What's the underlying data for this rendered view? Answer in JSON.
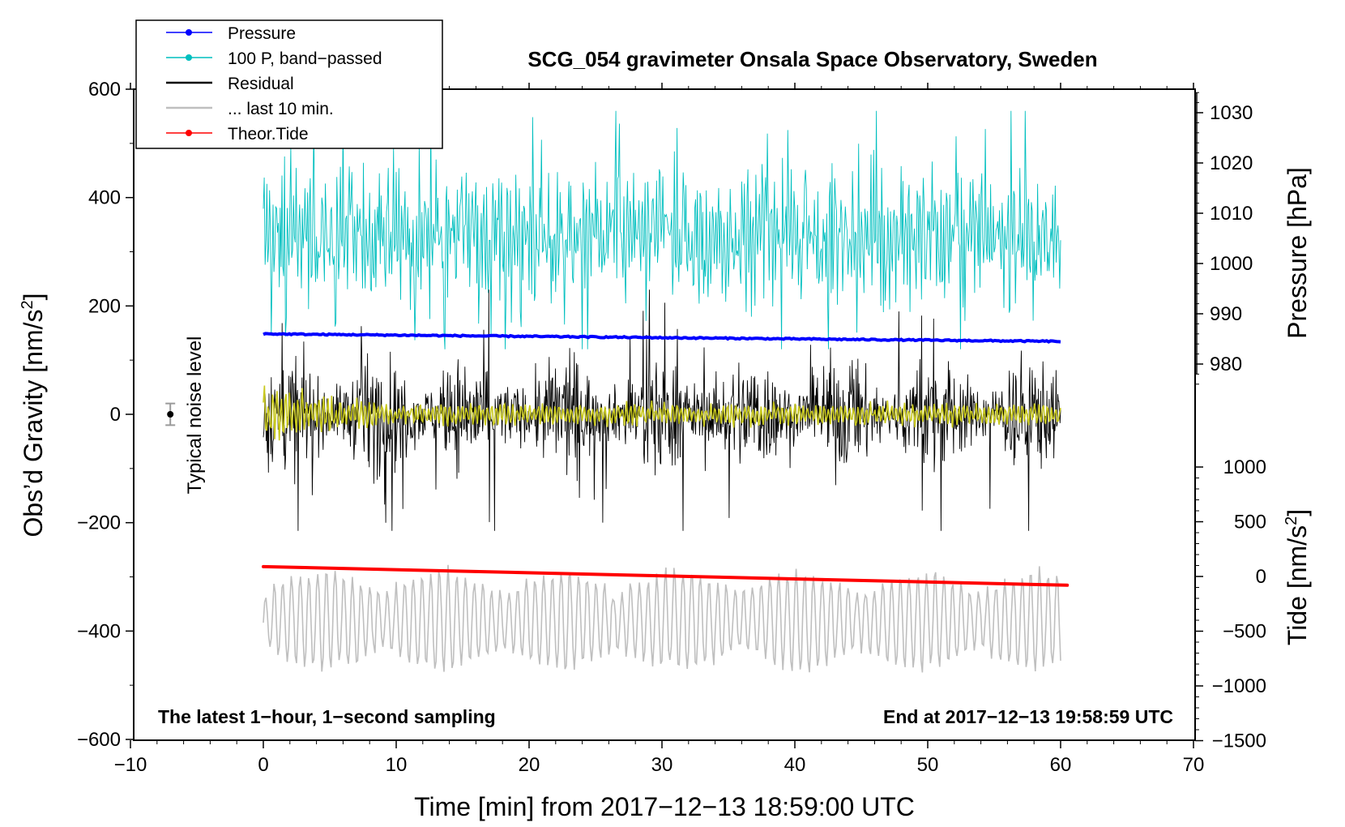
{
  "chart_data": {
    "type": "line",
    "title": "SCG_054 gravimeter Onsala Space Observatory, Sweden",
    "xlabel": "Time [min] from 2017−12−13 18:59:00 UTC",
    "ylabel_left": "Obs’d Gravity [nm/s²]",
    "ylabel_left_main": "Obs’d Gravity [nm/s",
    "ylabel_left_sup": "2",
    "ylabel_left_end": "]",
    "ylabel_right_pressure": "Pressure [hPa]",
    "ylabel_right_tide": "Tide [nm/s²]",
    "ylabel_right_tide_main": "Tide [nm/s",
    "ylabel_right_tide_sup": "2",
    "ylabel_right_tide_end": "]",
    "xlim": [
      -10,
      70
    ],
    "ylim": [
      -600,
      600
    ],
    "pressure_axis_range": [
      975,
      1034
    ],
    "tide_axis_range": [
      -1500,
      1000
    ],
    "x_ticks": [
      -10,
      0,
      10,
      20,
      30,
      40,
      50,
      60,
      70
    ],
    "x_tick_labels": [
      "−10",
      "0",
      "10",
      "20",
      "30",
      "40",
      "50",
      "60",
      "70"
    ],
    "y_ticks": [
      -600,
      -400,
      -200,
      0,
      200,
      400,
      600
    ],
    "y_tick_labels": [
      "−600",
      "−400",
      "−200",
      "0",
      "200",
      "400",
      "600"
    ],
    "pressure_ticks": [
      980,
      990,
      1000,
      1010,
      1020,
      1030
    ],
    "pressure_tick_labels": [
      "980",
      "990",
      "1000",
      "1010",
      "1020",
      "1030"
    ],
    "tide_ticks": [
      -1500,
      -1000,
      -500,
      0,
      500,
      1000
    ],
    "tide_tick_labels": [
      "−1500",
      "−1000",
      "−500",
      "0",
      "500",
      "1000"
    ],
    "legend": [
      {
        "label": "Pressure",
        "color": "#0000ff",
        "marker": true
      },
      {
        "label": "100 P, band−passed",
        "color": "#00bfbf",
        "marker": true
      },
      {
        "label": "Residual",
        "color": "#000000",
        "marker": false
      },
      {
        "label": "... last 10 min.",
        "color": "#bfbfbf",
        "marker": false
      },
      {
        "label": "Theor.Tide",
        "color": "#ff0000",
        "marker": true
      }
    ],
    "series": [
      {
        "name": "Pressure",
        "color": "#0000ff",
        "axis": "pressure",
        "x_range": [
          0,
          60
        ],
        "values_start_end": [
          986,
          984.5
        ]
      },
      {
        "name": "100 P, band−passed",
        "color": "#00bfbf",
        "axis": "gravity",
        "x_range": [
          0,
          60
        ],
        "center": 330,
        "amplitude": 110
      },
      {
        "name": "Residual",
        "color": "#000000",
        "axis": "gravity",
        "x_range": [
          0,
          60
        ],
        "center": 0,
        "amplitude": 90
      },
      {
        "name": "... last 10 min.",
        "color": "#bfbfbf",
        "axis": "gravity",
        "x_range": [
          0,
          60
        ],
        "center": -380,
        "amplitude": 90
      },
      {
        "name": "Theor.Tide",
        "color": "#ff0000",
        "axis": "tide",
        "x_range": [
          0,
          60.5
        ],
        "values_start_end": [
          90,
          -80
        ]
      },
      {
        "name": "Smoothed residual",
        "color": "#c8c81e",
        "axis": "gravity",
        "x_range": [
          0,
          60
        ],
        "center": 0,
        "amplitude": 25
      }
    ],
    "noise_marker": {
      "x": -7,
      "y": 0,
      "err": 20,
      "label": "Typical noise level"
    },
    "annotations": {
      "left": "The latest 1−hour, 1−second sampling",
      "right": "End at 2017−12−13 19:58:59 UTC"
    }
  },
  "colors": {
    "pressure": "#0000ff",
    "bandpassed": "#00bfbf",
    "residual": "#000000",
    "last10": "#bfbfbf",
    "tide": "#ff0000",
    "smoothed": "#c8c81e"
  }
}
